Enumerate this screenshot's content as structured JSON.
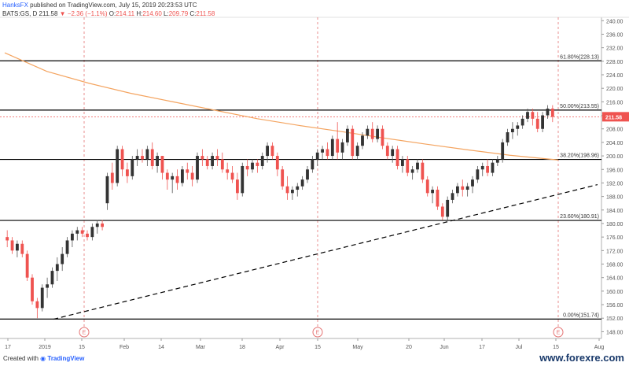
{
  "header": {
    "author": "HanksFX",
    "published": "published on TradingView.com, July 15, 2019 20:23:53 UTC",
    "symbol": "BATS:GS, D",
    "last": "211.58",
    "change": "−2.36 (−1.1%)",
    "o_label": "O:",
    "o_value": "214.11",
    "h_label": "H:",
    "h_value": "214.60",
    "l_label": "L:",
    "l_value": "209.79",
    "c_label": "C:",
    "c_value": "211.58"
  },
  "footer": {
    "created_with": "Created with",
    "tv_brand": "TradingView",
    "watermark": "www.forexre.com"
  },
  "colors": {
    "up": "#26a69a",
    "down": "#ef5350",
    "ma": "#f4a460",
    "trendline": "#000000",
    "fib_line": "#000000",
    "event_marker": "#e57373",
    "price_tag": "#ef5350"
  },
  "chart_data": {
    "type": "candlestick",
    "y_range": [
      146,
      241
    ],
    "y_ticks": [
      "240.00",
      "236.00",
      "232.00",
      "228.00",
      "224.00",
      "220.00",
      "216.00",
      "212.00",
      "208.00",
      "204.00",
      "200.00",
      "196.00",
      "192.00",
      "188.00",
      "184.00",
      "180.00",
      "176.00",
      "172.00",
      "168.00",
      "164.00",
      "160.00",
      "156.00",
      "152.00",
      "148.00"
    ],
    "x_tick_labels": [
      "17",
      "2019",
      "15",
      "Feb",
      "14",
      "Mar",
      "18",
      "Apr",
      "15",
      "May",
      "20",
      "Jun",
      "17",
      "Jul",
      "15",
      "Aug"
    ],
    "fib_levels": [
      {
        "label": "61.80%(228.13)",
        "value": 228.13
      },
      {
        "label": "50.00%(213.55)",
        "value": 213.55
      },
      {
        "label": "38.20%(198.96)",
        "value": 198.96
      },
      {
        "label": "23.60%(180.91)",
        "value": 180.91
      },
      {
        "label": "0.00%(151.74)",
        "value": 151.74
      }
    ],
    "current_price": {
      "label": "211.58",
      "value": 211.58
    },
    "event_marker_label": "E",
    "moving_average": {
      "start": {
        "session": 0,
        "value": 230.5
      },
      "points": [
        [
          0,
          230.5
        ],
        [
          20,
          225
        ],
        [
          40,
          221.5
        ],
        [
          60,
          218.5
        ],
        [
          80,
          216
        ],
        [
          100,
          213.5
        ],
        [
          120,
          211
        ],
        [
          140,
          209
        ],
        [
          160,
          207.2
        ],
        [
          180,
          205.3
        ],
        [
          200,
          203.5
        ],
        [
          220,
          201.8
        ],
        [
          240,
          200.2
        ],
        [
          263,
          198.8
        ]
      ]
    },
    "trendline": {
      "points": [
        [
          12,
          151.7
        ],
        [
          263,
          191.5
        ]
      ],
      "dashed": true
    },
    "candles": [
      [
        176,
        178,
        173,
        175
      ],
      [
        175,
        176,
        171,
        172
      ],
      [
        172,
        175,
        170,
        174
      ],
      [
        174,
        175,
        170,
        171
      ],
      [
        171,
        172,
        163,
        164
      ],
      [
        164,
        165,
        156,
        157
      ],
      [
        157,
        158,
        152,
        155
      ],
      [
        155,
        162,
        154,
        161
      ],
      [
        161,
        164,
        158,
        162
      ],
      [
        162,
        167,
        161,
        166
      ],
      [
        166,
        170,
        163,
        168
      ],
      [
        168,
        173,
        166,
        171
      ],
      [
        171,
        176,
        170,
        175
      ],
      [
        175,
        178,
        173,
        177
      ],
      [
        177,
        179,
        175,
        178
      ],
      [
        178,
        179,
        176,
        177
      ],
      [
        177,
        178,
        175,
        176
      ],
      [
        176,
        180,
        175,
        179
      ],
      [
        179,
        181,
        177,
        180
      ],
      [
        180,
        181,
        178,
        179
      ],
      [
        186,
        195,
        184,
        194
      ],
      [
        195,
        198,
        190,
        192
      ],
      [
        192,
        203,
        191,
        202
      ],
      [
        202,
        203,
        194,
        196
      ],
      [
        196,
        198,
        192,
        194
      ],
      [
        194,
        200,
        193,
        199
      ],
      [
        199,
        202,
        197,
        200
      ],
      [
        200,
        202,
        198,
        199
      ],
      [
        199,
        203,
        197,
        202
      ],
      [
        202,
        204,
        196,
        197
      ],
      [
        197,
        201,
        195,
        200
      ],
      [
        200,
        200,
        193,
        195
      ],
      [
        195,
        196,
        190,
        193
      ],
      [
        193,
        195,
        189,
        194
      ],
      [
        194,
        196,
        190,
        192
      ],
      [
        192,
        197,
        191,
        196
      ],
      [
        196,
        198,
        193,
        195
      ],
      [
        195,
        197,
        191,
        193
      ],
      [
        193,
        201,
        192,
        200
      ],
      [
        200,
        202,
        197,
        199
      ],
      [
        199,
        200,
        196,
        197
      ],
      [
        197,
        201,
        196,
        200
      ],
      [
        200,
        202,
        197,
        199
      ],
      [
        199,
        201,
        195,
        196
      ],
      [
        196,
        198,
        193,
        195
      ],
      [
        195,
        197,
        192,
        193
      ],
      [
        193,
        195,
        187,
        189
      ],
      [
        189,
        198,
        188,
        197
      ],
      [
        197,
        199,
        194,
        196
      ],
      [
        196,
        199,
        195,
        198
      ],
      [
        198,
        199,
        195,
        197
      ],
      [
        197,
        201,
        196,
        200
      ],
      [
        200,
        204,
        198,
        203
      ],
      [
        203,
        204,
        199,
        200
      ],
      [
        200,
        201,
        194,
        196
      ],
      [
        196,
        197,
        190,
        191
      ],
      [
        191,
        194,
        187,
        189
      ],
      [
        189,
        191,
        187,
        190
      ],
      [
        190,
        192,
        188,
        191
      ],
      [
        191,
        194,
        190,
        193
      ],
      [
        193,
        197,
        192,
        196
      ],
      [
        196,
        200,
        195,
        199
      ],
      [
        199,
        202,
        197,
        201
      ],
      [
        201,
        203,
        199,
        202
      ],
      [
        202,
        204,
        199,
        200
      ],
      [
        200,
        206,
        199,
        205
      ],
      [
        205,
        210,
        199,
        201
      ],
      [
        201,
        205,
        199,
        204
      ],
      [
        204,
        209,
        203,
        208
      ],
      [
        208,
        209,
        199,
        200
      ],
      [
        200,
        204,
        199,
        203
      ],
      [
        203,
        207,
        202,
        206
      ],
      [
        206,
        209,
        205,
        208
      ],
      [
        208,
        210,
        204,
        205
      ],
      [
        205,
        209,
        204,
        208
      ],
      [
        208,
        209,
        202,
        203
      ],
      [
        203,
        204,
        199,
        200
      ],
      [
        200,
        203,
        198,
        202
      ],
      [
        202,
        203,
        196,
        197
      ],
      [
        197,
        200,
        195,
        199
      ],
      [
        199,
        200,
        194,
        195
      ],
      [
        195,
        197,
        193,
        196
      ],
      [
        196,
        199,
        195,
        198
      ],
      [
        198,
        199,
        192,
        193
      ],
      [
        193,
        194,
        188,
        189
      ],
      [
        189,
        191,
        186,
        190
      ],
      [
        190,
        191,
        184,
        185
      ],
      [
        185,
        186,
        181,
        182
      ],
      [
        182,
        188,
        181,
        187
      ],
      [
        187,
        190,
        186,
        189
      ],
      [
        189,
        192,
        188,
        191
      ],
      [
        191,
        193,
        188,
        190
      ],
      [
        190,
        192,
        188,
        191
      ],
      [
        191,
        194,
        189,
        193
      ],
      [
        193,
        197,
        192,
        196
      ],
      [
        196,
        198,
        194,
        197
      ],
      [
        197,
        199,
        194,
        195
      ],
      [
        195,
        199,
        194,
        198
      ],
      [
        198,
        200,
        197,
        199
      ],
      [
        199,
        205,
        198,
        204
      ],
      [
        204,
        208,
        203,
        207
      ],
      [
        207,
        210,
        205,
        208
      ],
      [
        208,
        210,
        206,
        209
      ],
      [
        209,
        212,
        208,
        211
      ],
      [
        211,
        214,
        210,
        213
      ],
      [
        213,
        214,
        209,
        211
      ],
      [
        211,
        213,
        207,
        208
      ],
      [
        208,
        213,
        207,
        212
      ],
      [
        212,
        215,
        211,
        214
      ],
      [
        214,
        215,
        210,
        211.58
      ]
    ]
  }
}
